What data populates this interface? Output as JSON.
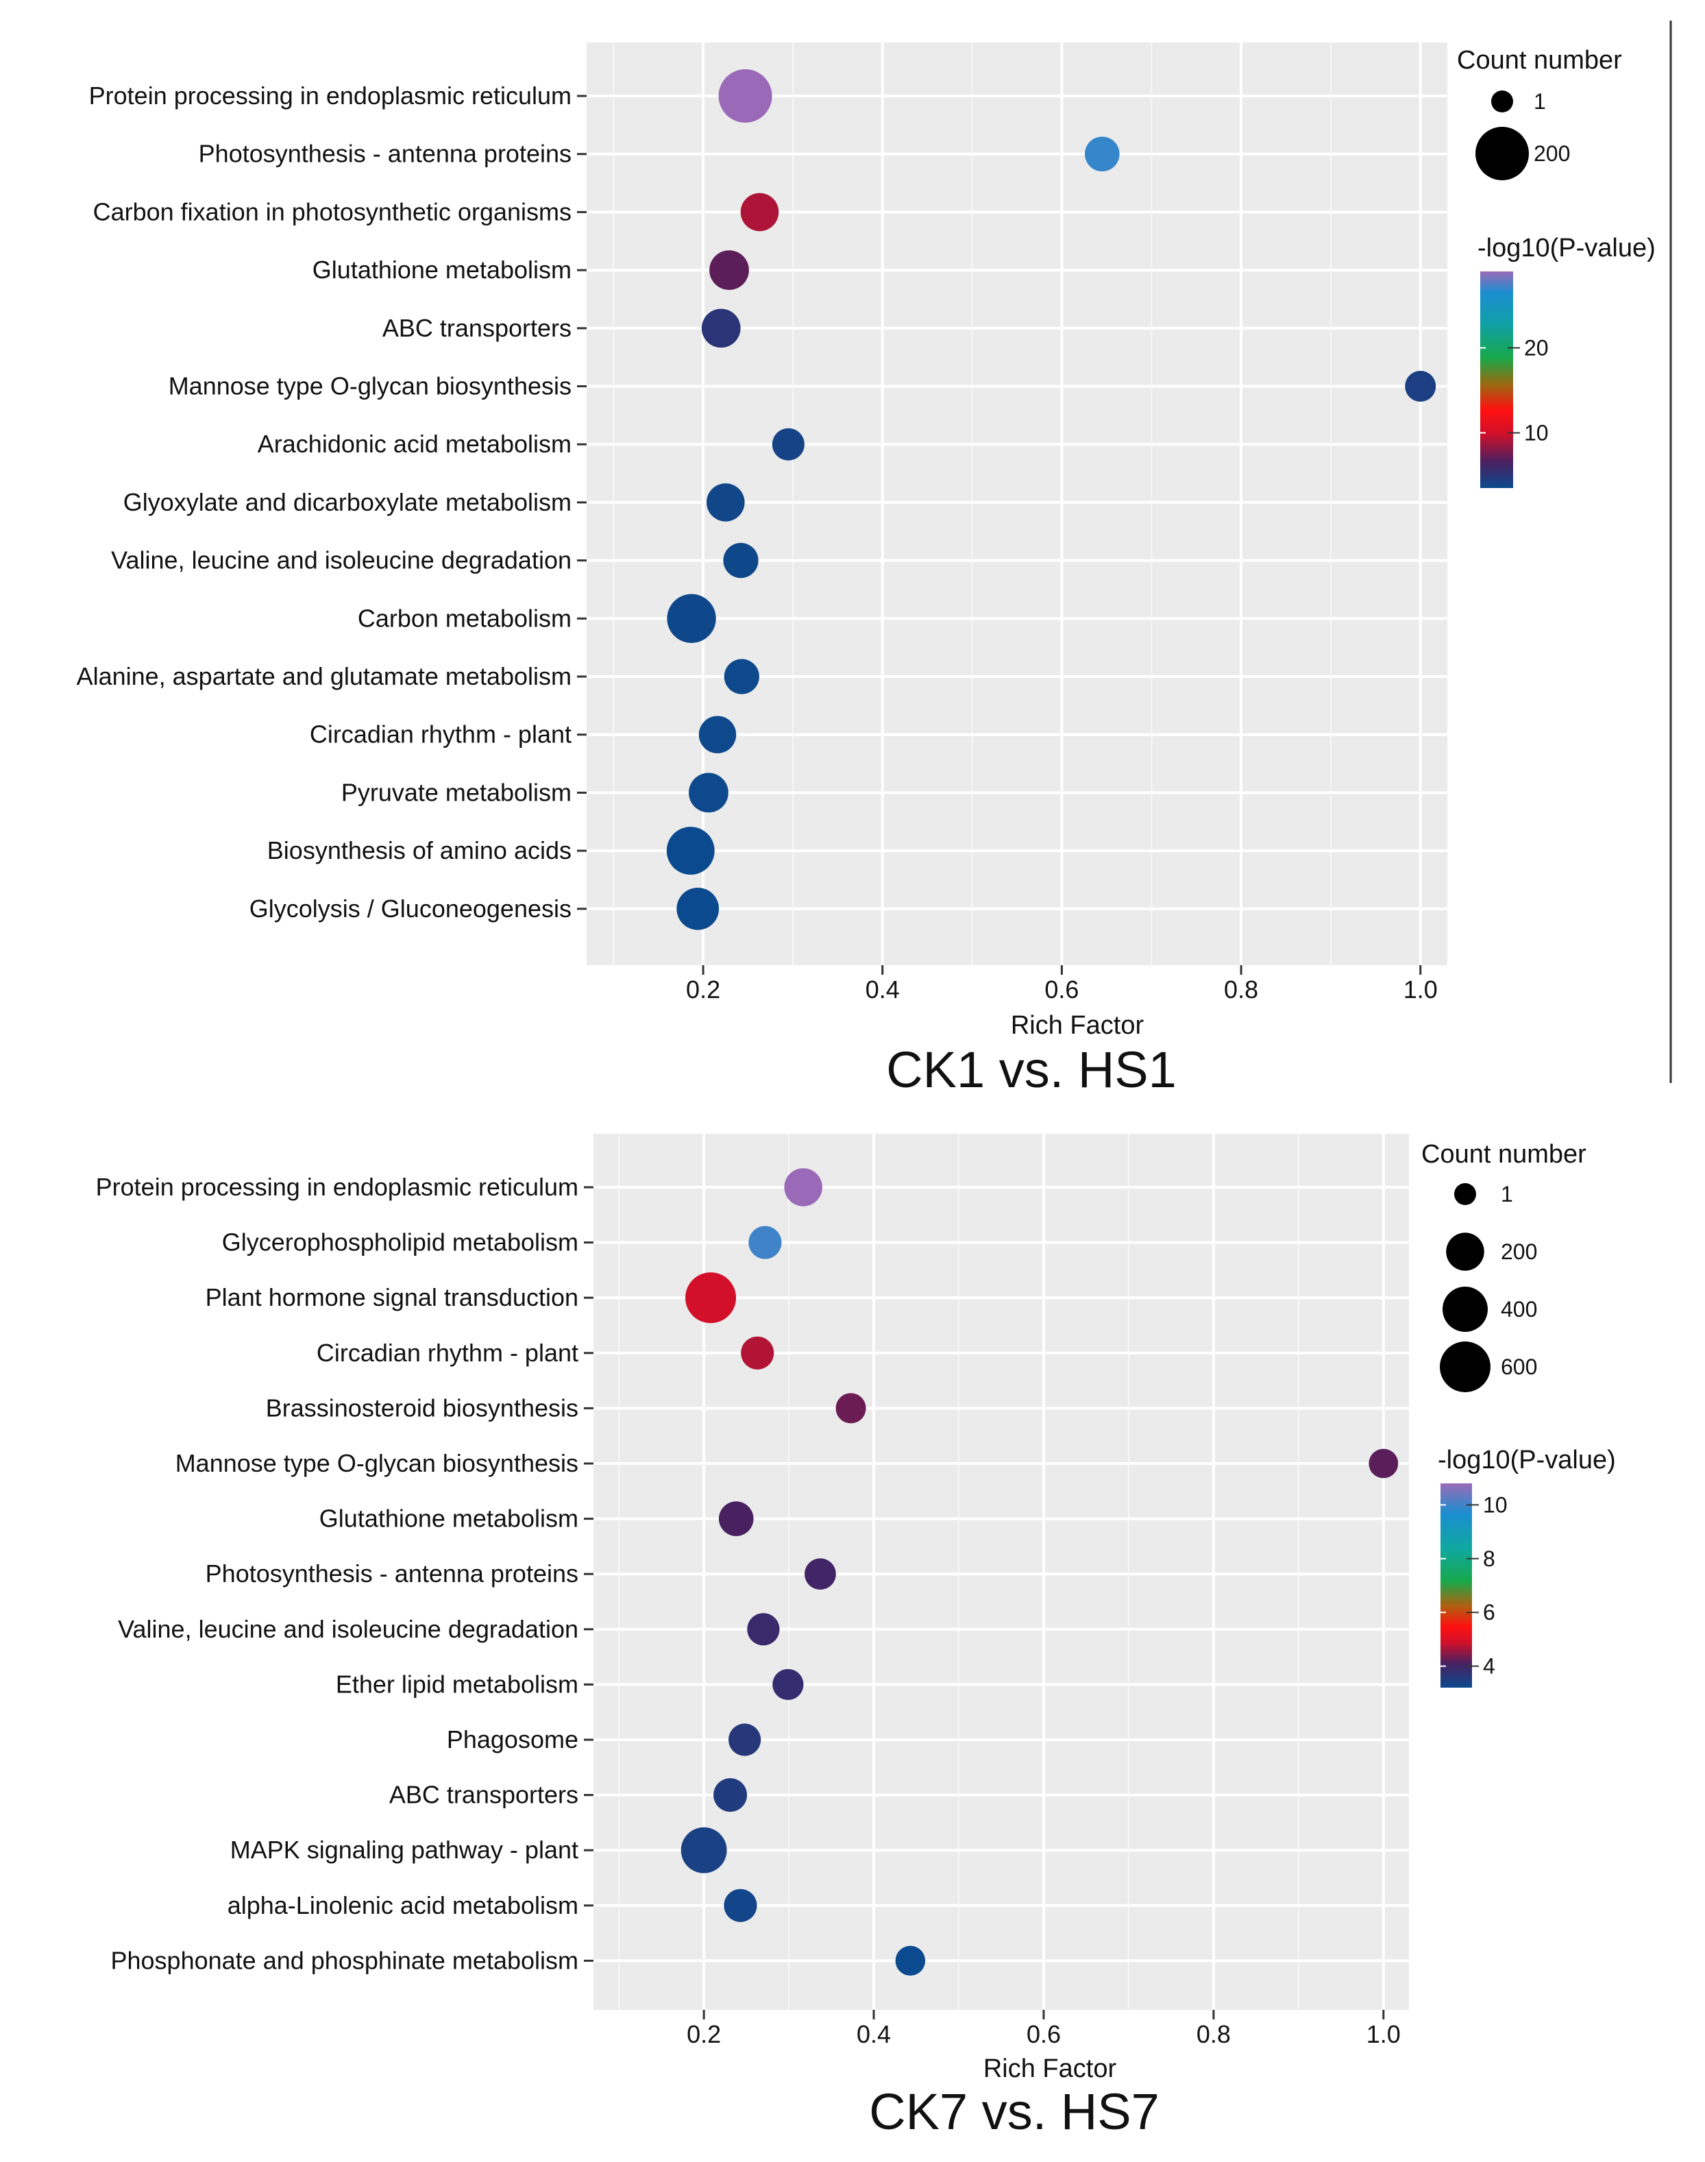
{
  "chart_data": [
    {
      "type": "scatter",
      "title": "CK1 vs. HS1",
      "xlabel": "Rich Factor",
      "ylabel": "",
      "xlim": [
        0.07,
        1.03
      ],
      "xticks": [
        "0.2",
        "0.4",
        "0.6",
        "0.8",
        "1.0"
      ],
      "xtick_values": [
        0.2,
        0.4,
        0.6,
        0.8,
        1.0
      ],
      "grid": true,
      "size_legend": {
        "title": "Count number",
        "values": [
          1,
          200
        ],
        "labels": [
          "1",
          "200"
        ]
      },
      "color_legend": {
        "title": "-log10(P-value)",
        "min": 3.5,
        "max": 29,
        "ticks": [
          10,
          20
        ],
        "tick_labels": [
          "10",
          "20"
        ]
      },
      "points": [
        {
          "term": "Protein processing in endoplasmic reticulum",
          "rich_factor": 0.247,
          "count": 200,
          "neglog10p": 29
        },
        {
          "term": "Photosynthesis - antenna proteins",
          "rich_factor": 0.645,
          "count": 40,
          "neglog10p": 27
        },
        {
          "term": "Carbon fixation in photosynthetic organisms",
          "rich_factor": 0.263,
          "count": 60,
          "neglog10p": 9
        },
        {
          "term": "Glutathione metabolism",
          "rich_factor": 0.229,
          "count": 70,
          "neglog10p": 7
        },
        {
          "term": "ABC transporters",
          "rich_factor": 0.22,
          "count": 65,
          "neglog10p": 5
        },
        {
          "term": "Mannose type O-glycan biosynthesis",
          "rich_factor": 1.0,
          "count": 22,
          "neglog10p": 4.3
        },
        {
          "term": "Arachidonic acid metabolism",
          "rich_factor": 0.295,
          "count": 28,
          "neglog10p": 4.0
        },
        {
          "term": "Glyoxylate and dicarboxylate metabolism",
          "rich_factor": 0.225,
          "count": 60,
          "neglog10p": 3.8
        },
        {
          "term": "Valine, leucine and isoleucine degradation",
          "rich_factor": 0.242,
          "count": 42,
          "neglog10p": 3.7
        },
        {
          "term": "Carbon metabolism",
          "rich_factor": 0.187,
          "count": 150,
          "neglog10p": 3.7
        },
        {
          "term": "Alanine, aspartate and glutamate metabolism",
          "rich_factor": 0.243,
          "count": 42,
          "neglog10p": 3.6
        },
        {
          "term": "Circadian rhythm - plant",
          "rich_factor": 0.216,
          "count": 55,
          "neglog10p": 3.6
        },
        {
          "term": "Pyruvate metabolism",
          "rich_factor": 0.206,
          "count": 70,
          "neglog10p": 3.6
        },
        {
          "term": "Biosynthesis of amino acids",
          "rich_factor": 0.186,
          "count": 140,
          "neglog10p": 3.5
        },
        {
          "term": "Glycolysis / Gluconeogenesis",
          "rich_factor": 0.194,
          "count": 90,
          "neglog10p": 3.5
        }
      ]
    },
    {
      "type": "scatter",
      "title": "CK7 vs. HS7",
      "xlabel": "Rich Factor",
      "ylabel": "",
      "xlim": [
        0.07,
        1.03
      ],
      "xticks": [
        "0.2",
        "0.4",
        "0.6",
        "0.8",
        "1.0"
      ],
      "xtick_values": [
        0.2,
        0.4,
        0.6,
        0.8,
        1.0
      ],
      "grid": true,
      "size_legend": {
        "title": "Count number",
        "values": [
          1,
          200,
          400,
          600
        ],
        "labels": [
          "1",
          "200",
          "400",
          "600"
        ]
      },
      "color_legend": {
        "title": "-log10(P-value)",
        "min": 3.2,
        "max": 10.8,
        "ticks": [
          4,
          6,
          8,
          10
        ],
        "tick_labels": [
          "4",
          "6",
          "8",
          "10"
        ]
      },
      "points": [
        {
          "term": "Protein processing in endoplasmic reticulum",
          "rich_factor": 0.317,
          "count": 200,
          "neglog10p": 10.8
        },
        {
          "term": "Glycerophospholipid metabolism",
          "rich_factor": 0.272,
          "count": 100,
          "neglog10p": 10.0
        },
        {
          "term": "Plant hormone signal transduction",
          "rich_factor": 0.208,
          "count": 600,
          "neglog10p": 4.9
        },
        {
          "term": "Circadian rhythm - plant",
          "rich_factor": 0.263,
          "count": 100,
          "neglog10p": 4.7
        },
        {
          "term": "Brassinosteroid biosynthesis",
          "rich_factor": 0.373,
          "count": 60,
          "neglog10p": 4.3
        },
        {
          "term": "Mannose type O-glycan biosynthesis",
          "rich_factor": 1.0,
          "count": 50,
          "neglog10p": 4.2
        },
        {
          "term": "Glutathione metabolism",
          "rich_factor": 0.238,
          "count": 130,
          "neglog10p": 4.1
        },
        {
          "term": "Photosynthesis - antenna proteins",
          "rich_factor": 0.337,
          "count": 75,
          "neglog10p": 4.0
        },
        {
          "term": "Valine, leucine and isoleucine degradation",
          "rich_factor": 0.27,
          "count": 90,
          "neglog10p": 3.9
        },
        {
          "term": "Ether lipid metabolism",
          "rich_factor": 0.299,
          "count": 70,
          "neglog10p": 3.8
        },
        {
          "term": "Phagosome",
          "rich_factor": 0.248,
          "count": 90,
          "neglog10p": 3.6
        },
        {
          "term": "ABC transporters",
          "rich_factor": 0.231,
          "count": 110,
          "neglog10p": 3.5
        },
        {
          "term": "MAPK signaling pathway - plant",
          "rich_factor": 0.2,
          "count": 420,
          "neglog10p": 3.4
        },
        {
          "term": "alpha-Linolenic acid metabolism",
          "rich_factor": 0.243,
          "count": 100,
          "neglog10p": 3.3
        },
        {
          "term": "Phosphonate and phosphinate metabolism",
          "rich_factor": 0.443,
          "count": 55,
          "neglog10p": 3.2
        }
      ]
    }
  ]
}
